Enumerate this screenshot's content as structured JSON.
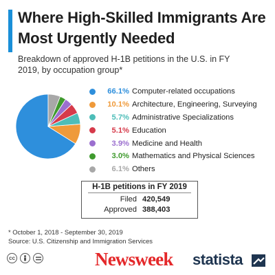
{
  "header": {
    "title": "Where High-Skilled Immigrants Are Most Urgently Needed",
    "subtitle": "Breakdown of approved H-1B petitions in the U.S. in FY 2019, by occupation group*"
  },
  "chart_data": {
    "type": "pie",
    "title": "Where High-Skilled Immigrants Are Most Urgently Needed",
    "subtitle": "Breakdown of approved H-1B petitions in the U.S. in FY 2019, by occupation group*",
    "categories": [
      "Computer-related occupations",
      "Architecture, Engineering, Surveying",
      "Administrative Specializations",
      "Education",
      "Medicine and Health",
      "Mathematics and Physical Sciences",
      "Others"
    ],
    "values": [
      66.1,
      10.1,
      5.7,
      5.1,
      3.9,
      3.0,
      6.1
    ],
    "value_labels": [
      "66.1%",
      "10.1%",
      "5.7%",
      "5.1%",
      "3.9%",
      "3.0%",
      "6.1%"
    ],
    "colors": [
      "#2e8fdc",
      "#ef9a3a",
      "#4dbdb8",
      "#d63a4a",
      "#9b6fcf",
      "#3f9a2e",
      "#a8a8a8"
    ],
    "legend_placement": "right"
  },
  "stats": {
    "title": "H-1B petitions in FY 2019",
    "rows": [
      {
        "label": "Filed",
        "value": "420,549"
      },
      {
        "label": "Approved",
        "value": "388,403"
      }
    ]
  },
  "footnote": {
    "line1": "* October 1, 2018 - September 30, 2019",
    "line2": "Source: U.S. Citizenship and Immigration Services"
  },
  "footer": {
    "cc_icons": [
      "cc-icon",
      "person-icon",
      "equals-icon"
    ],
    "newsweek": "Newsweek",
    "statista": "statista"
  }
}
